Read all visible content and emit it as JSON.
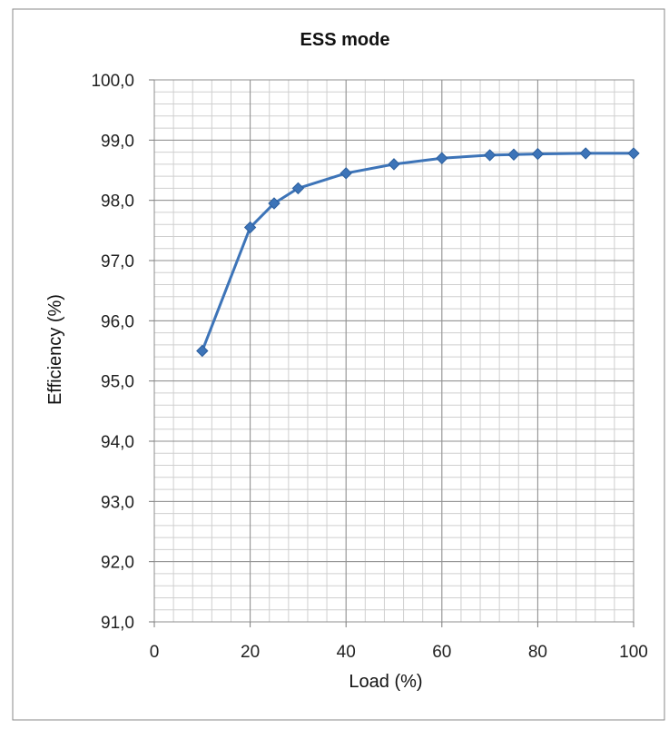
{
  "chart_data": {
    "type": "line",
    "title": "ESS mode",
    "xlabel": "Load (%)",
    "ylabel": "Efficiency (%)",
    "xlim": [
      0,
      100
    ],
    "ylim": [
      91,
      100
    ],
    "x_ticks": [
      "0",
      "20",
      "40",
      "60",
      "80",
      "100"
    ],
    "y_ticks": [
      "91,0",
      "92,0",
      "93,0",
      "94,0",
      "95,0",
      "96,0",
      "97,0",
      "98,0",
      "99,0",
      "100,0"
    ],
    "grid": true,
    "legend": "none",
    "series": [
      {
        "color": "#3d74b8",
        "marker": "diamond",
        "x": [
          10,
          20,
          25,
          30,
          40,
          50,
          60,
          70,
          75,
          80,
          90,
          100
        ],
        "y": [
          95.5,
          97.55,
          97.95,
          98.2,
          98.45,
          98.6,
          98.7,
          98.75,
          98.76,
          98.77,
          98.78,
          98.78
        ]
      }
    ]
  }
}
